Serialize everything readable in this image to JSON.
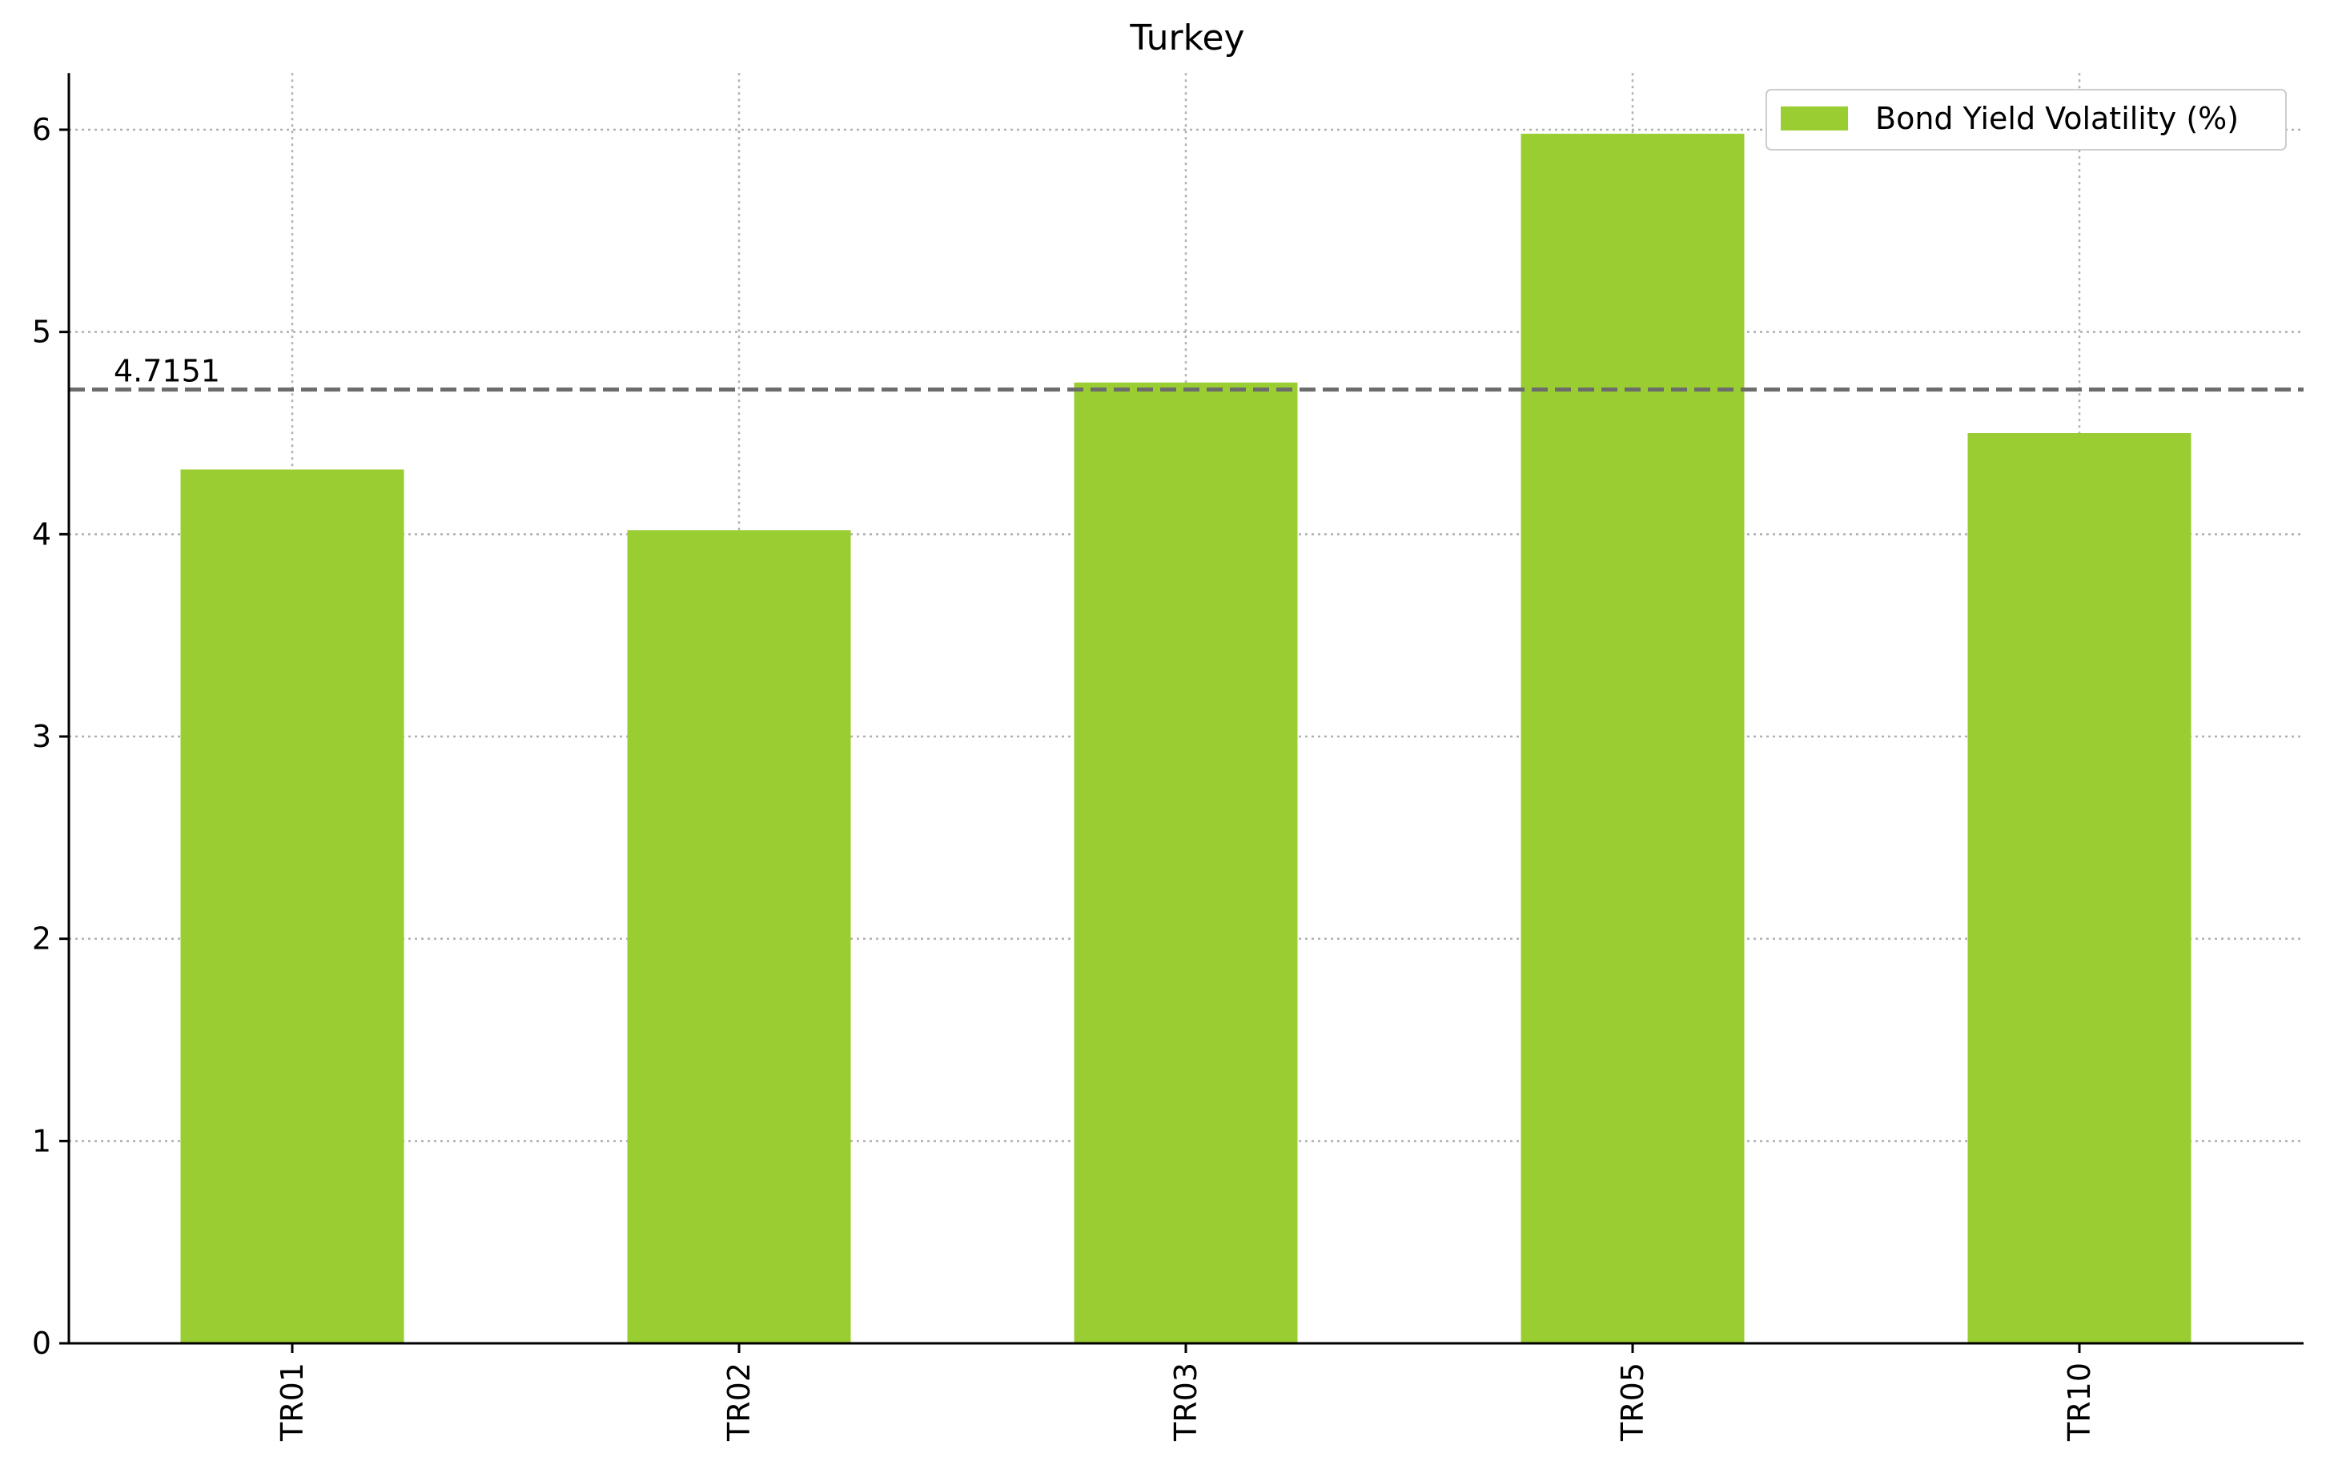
{
  "chart_data": {
    "type": "bar",
    "title": "Turkey",
    "xlabel": "",
    "ylabel": "",
    "categories": [
      "TR01",
      "TR02",
      "TR03",
      "TR05",
      "TR10"
    ],
    "series": [
      {
        "name": "Bond Yield Volatility (%)",
        "values": [
          4.32,
          4.02,
          4.75,
          5.98,
          4.5
        ],
        "color": "#9acd32"
      }
    ],
    "reference_line": {
      "value": 4.7151,
      "label": "4.7151",
      "style": "dashed",
      "color": "#6b6b6b"
    },
    "ylim": [
      0,
      6.28
    ],
    "yticks": [
      0,
      1,
      2,
      3,
      4,
      5,
      6
    ],
    "grid": true,
    "legend": {
      "position": "top-right"
    }
  }
}
